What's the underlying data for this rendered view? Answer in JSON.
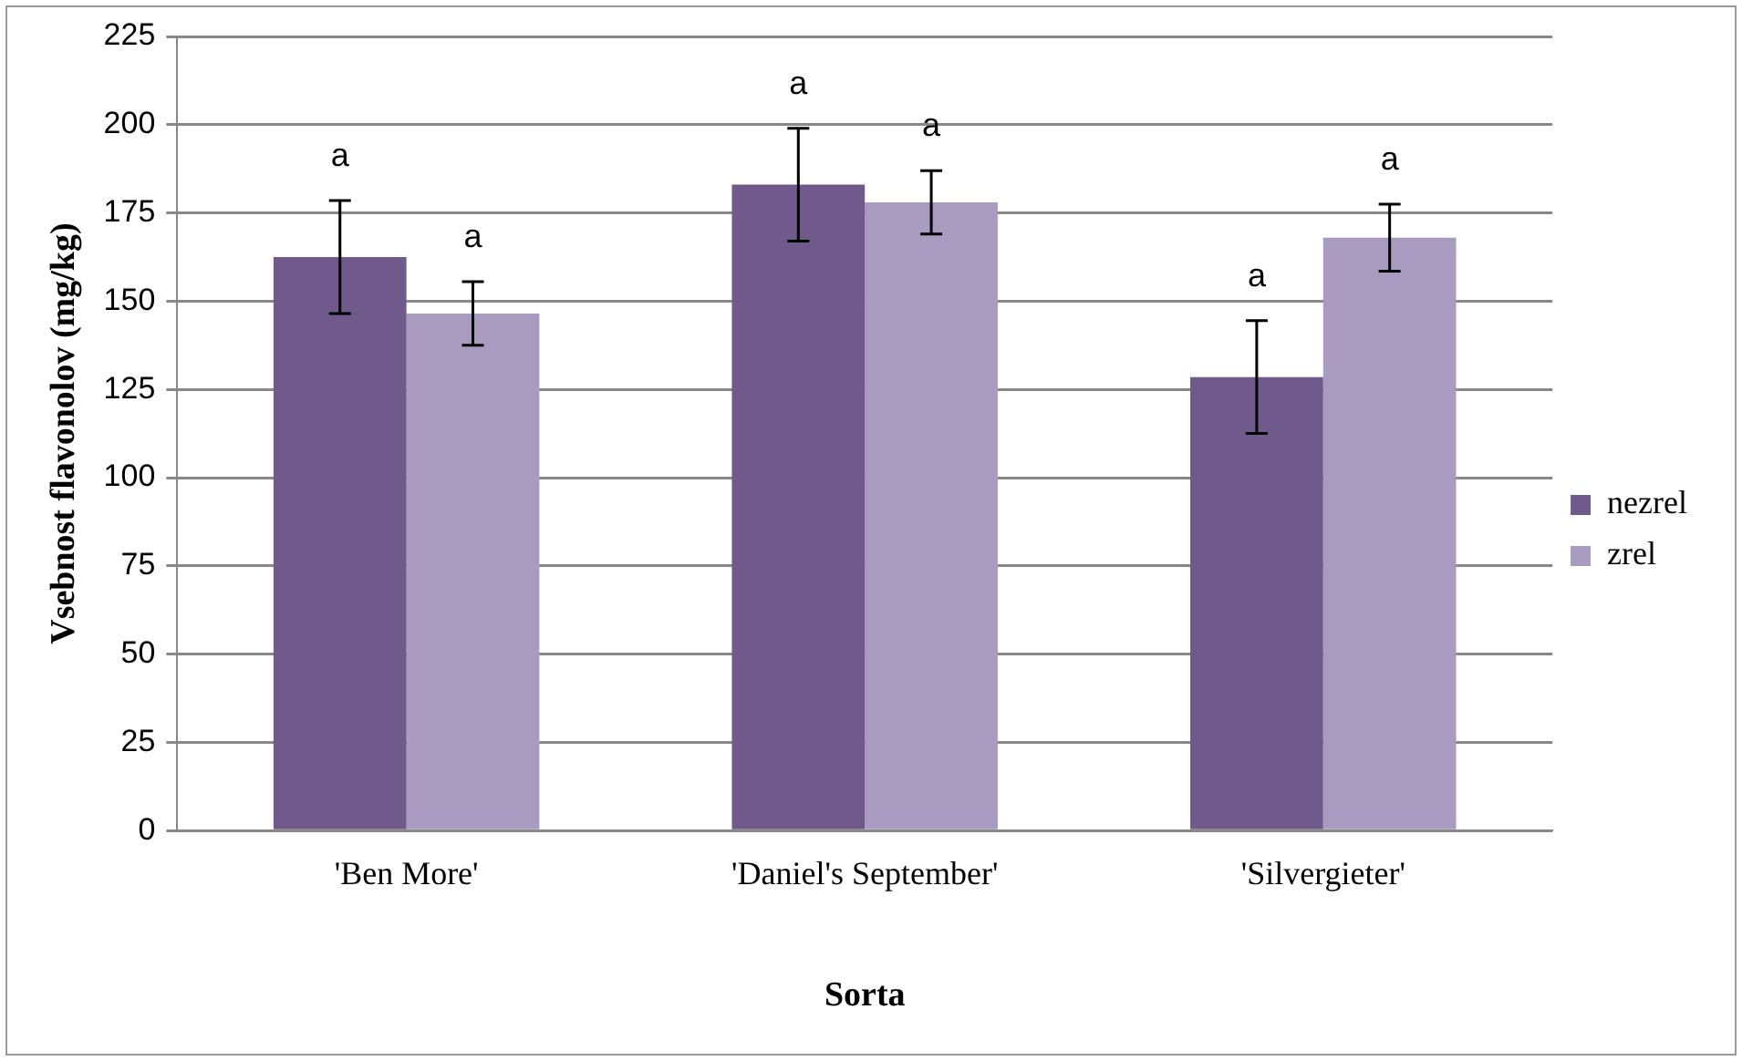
{
  "chart_data": {
    "type": "bar",
    "xlabel": "Sorta",
    "ylabel": "Vsebnost flavonolov (mg/kg)",
    "categories": [
      "'Ben More'",
      "'Daniel's September'",
      "'Silvergieter'"
    ],
    "series": [
      {
        "name": "nezrel",
        "color": "#705a8c",
        "values": [
          162.5,
          183,
          128.5
        ],
        "errors": [
          16,
          16,
          16
        ]
      },
      {
        "name": "zrel",
        "color": "#a99bbf",
        "values": [
          146.5,
          178,
          168
        ],
        "errors": [
          9,
          9,
          9.5
        ]
      }
    ],
    "ylim": [
      0,
      225
    ],
    "yticks": [
      0,
      25,
      50,
      75,
      100,
      125,
      150,
      175,
      200,
      225
    ],
    "grid": "y",
    "legend": "right",
    "annotations": [
      "a",
      "a",
      "a",
      "a",
      "a",
      "a"
    ]
  }
}
